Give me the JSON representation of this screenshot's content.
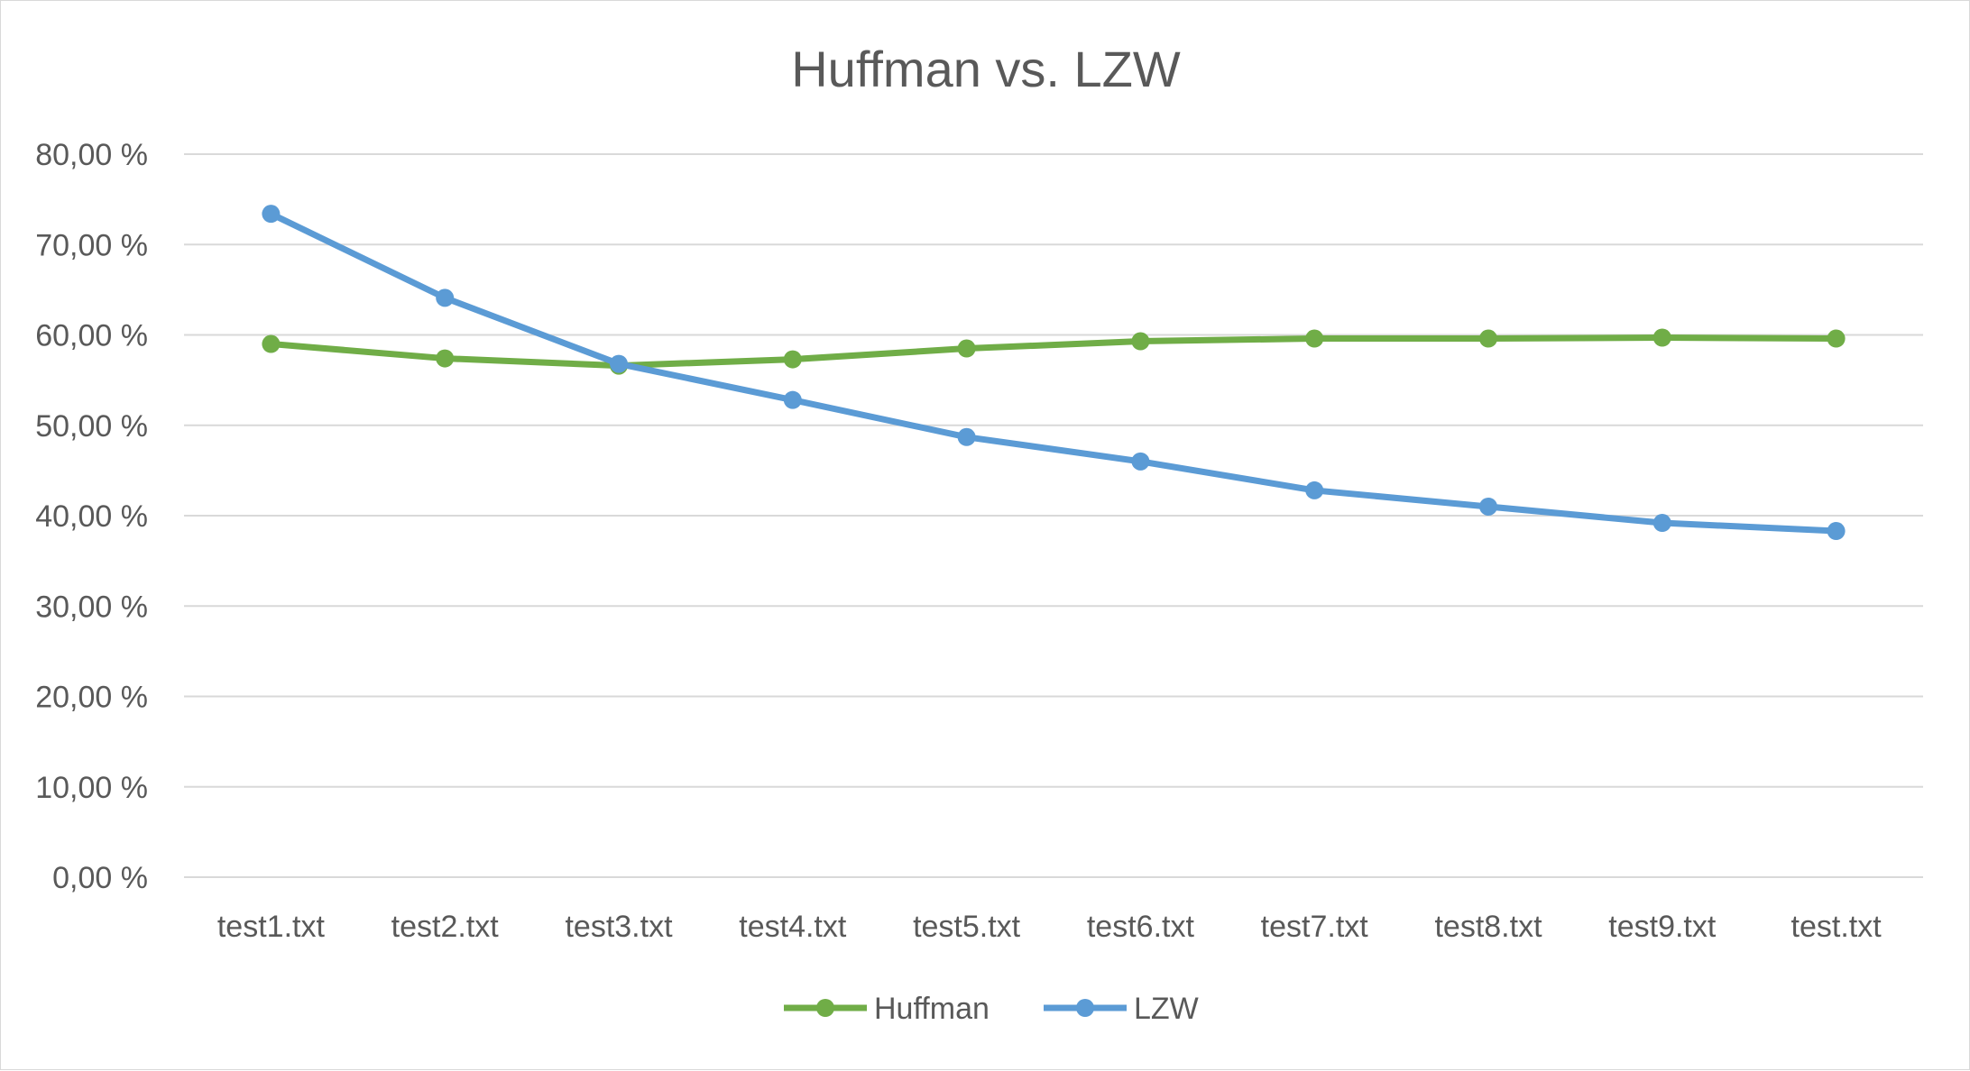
{
  "chart_data": {
    "type": "line",
    "title": "Huffman vs. LZW",
    "categories": [
      "test1.txt",
      "test2.txt",
      "test3.txt",
      "test4.txt",
      "test5.txt",
      "test6.txt",
      "test7.txt",
      "test8.txt",
      "test9.txt",
      "test.txt"
    ],
    "y_ticks": [
      "0,00 %",
      "10,00 %",
      "20,00 %",
      "30,00 %",
      "40,00 %",
      "50,00 %",
      "60,00 %",
      "70,00 %",
      "80,00 %"
    ],
    "ylim": [
      0,
      80
    ],
    "grid": true,
    "legend_position": "bottom",
    "series": [
      {
        "name": "Huffman",
        "color": "#70ad47",
        "values": [
          59.0,
          57.4,
          56.6,
          57.3,
          58.5,
          59.3,
          59.6,
          59.6,
          59.7,
          59.6
        ]
      },
      {
        "name": "LZW",
        "color": "#5b9bd5",
        "values": [
          73.4,
          64.1,
          56.8,
          52.8,
          48.7,
          46.0,
          42.8,
          41.0,
          39.2,
          38.3
        ]
      }
    ]
  }
}
